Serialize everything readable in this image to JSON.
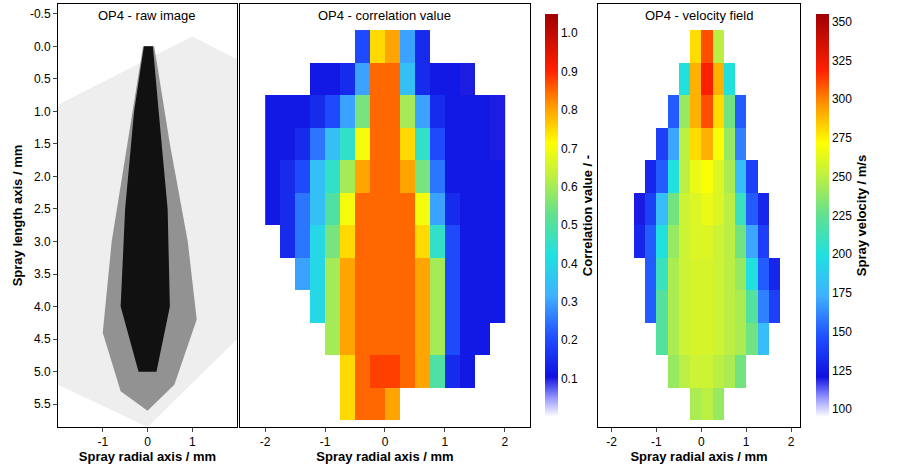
{
  "chart_data": [
    {
      "type": "image",
      "title": "OP4 - raw image",
      "xlabel": "Spray radial axis / mm",
      "ylabel": "Spray length axis / mm",
      "xlim": [
        -2,
        2
      ],
      "xticks": [
        -1,
        0,
        1
      ],
      "ylim": [
        5.85,
        -0.65
      ],
      "yticks": [
        -0.5,
        {
          "value": 0,
          "label": "0.0"
        },
        0.5,
        {
          "value": 1,
          "label": "1.0"
        },
        1.5,
        {
          "value": 2,
          "label": "2.0"
        },
        2.5,
        {
          "value": 3,
          "label": "3.0"
        },
        3.5,
        {
          "value": 4,
          "label": "4.0"
        },
        4.5,
        {
          "value": 5,
          "label": "5.0"
        },
        5.5
      ]
    },
    {
      "type": "heatmap",
      "title": "OP4 - correlation value",
      "xlabel": "Spray radial axis / mm",
      "xlim": [
        -2.42,
        2.42
      ],
      "xticks": [
        -2,
        -1,
        0,
        1,
        2
      ],
      "ylim": [
        5.85,
        -0.65
      ],
      "tick_labels": "x",
      "x": [
        -1.875,
        -1.625,
        -1.375,
        -1.125,
        -0.875,
        -0.625,
        -0.375,
        -0.125,
        0.125,
        0.375,
        0.625,
        0.875,
        1.125,
        1.375,
        1.625,
        1.875
      ],
      "y": [
        0,
        0.5,
        1,
        1.5,
        2,
        2.5,
        3,
        3.5,
        4,
        4.5,
        5,
        5.5
      ],
      "cells": [
        [
          null,
          null,
          null,
          null,
          null,
          null,
          0.2,
          0.75,
          0.8,
          0.3,
          0.15,
          null,
          null,
          null,
          null,
          null
        ],
        [
          null,
          null,
          null,
          0.12,
          0.12,
          0.15,
          0.3,
          0.85,
          0.85,
          0.35,
          0.15,
          0.12,
          0.12,
          0.1,
          null,
          null
        ],
        [
          0.12,
          0.12,
          0.12,
          0.15,
          0.2,
          0.3,
          0.55,
          0.85,
          0.85,
          0.6,
          0.3,
          0.15,
          0.12,
          0.12,
          0.12,
          0.1
        ],
        [
          0.12,
          0.12,
          0.15,
          0.25,
          0.35,
          0.45,
          0.7,
          0.85,
          0.85,
          0.75,
          0.45,
          0.2,
          0.12,
          0.12,
          0.12,
          0.1
        ],
        [
          0.12,
          0.15,
          0.2,
          0.35,
          0.45,
          0.6,
          0.8,
          0.85,
          0.85,
          0.8,
          0.55,
          0.25,
          0.12,
          0.12,
          0.12,
          0.12
        ],
        [
          0.12,
          0.15,
          0.25,
          0.35,
          0.5,
          0.7,
          0.85,
          0.85,
          0.85,
          0.85,
          0.7,
          0.3,
          0.15,
          0.12,
          0.12,
          0.12
        ],
        [
          null,
          0.15,
          0.25,
          0.4,
          0.55,
          0.75,
          0.85,
          0.85,
          0.85,
          0.85,
          0.75,
          0.45,
          0.2,
          0.12,
          0.12,
          0.12
        ],
        [
          null,
          null,
          0.3,
          0.4,
          0.6,
          0.8,
          0.85,
          0.85,
          0.85,
          0.85,
          0.8,
          0.6,
          0.2,
          0.12,
          0.12,
          0.12
        ],
        [
          null,
          null,
          null,
          0.4,
          0.6,
          0.8,
          0.85,
          0.85,
          0.85,
          0.85,
          0.8,
          0.6,
          0.2,
          0.12,
          0.12,
          0.12
        ],
        [
          null,
          null,
          null,
          null,
          0.6,
          0.8,
          0.85,
          0.85,
          0.85,
          0.85,
          0.8,
          0.6,
          0.2,
          0.12,
          0.12,
          null
        ],
        [
          null,
          null,
          null,
          null,
          null,
          0.75,
          0.85,
          0.88,
          0.88,
          0.85,
          0.8,
          0.5,
          0.15,
          0.12,
          null,
          null
        ],
        [
          null,
          null,
          null,
          null,
          null,
          0.75,
          0.85,
          0.85,
          0.8,
          null,
          null,
          null,
          null,
          null,
          null,
          null
        ]
      ],
      "colorbar_title": "Correlation value / -",
      "zlim": [
        0,
        1.05
      ],
      "zticks": [
        0.1,
        0.2,
        0.3,
        0.4,
        0.5,
        0.6,
        0.7,
        0.8,
        0.9,
        {
          "value": 1,
          "label": "1.0"
        }
      ]
    },
    {
      "type": "heatmap",
      "title": "OP4 - velocity field",
      "xlabel": "Spray radial axis / mm",
      "xlim": [
        -2.3,
        2.2
      ],
      "xticks": [
        -2,
        -1,
        0,
        1,
        2
      ],
      "ylim": [
        5.85,
        -0.65
      ],
      "tick_labels": "x",
      "x": [
        -1.875,
        -1.625,
        -1.375,
        -1.125,
        -0.875,
        -0.625,
        -0.375,
        -0.125,
        0.125,
        0.375,
        0.625,
        0.875,
        1.125,
        1.375,
        1.625,
        1.875
      ],
      "y": [
        0,
        0.5,
        1,
        1.5,
        2,
        2.5,
        3,
        3.5,
        4,
        4.5,
        5,
        5.5
      ],
      "cells": [
        [
          null,
          null,
          null,
          null,
          null,
          null,
          null,
          280,
          310,
          250,
          null,
          null,
          null,
          null,
          null,
          null
        ],
        [
          null,
          null,
          null,
          null,
          null,
          null,
          200,
          290,
          320,
          290,
          200,
          null,
          null,
          null,
          null,
          null
        ],
        [
          null,
          null,
          null,
          null,
          null,
          150,
          240,
          290,
          310,
          280,
          230,
          150,
          null,
          null,
          null,
          null
        ],
        [
          null,
          null,
          null,
          null,
          140,
          170,
          250,
          280,
          290,
          270,
          240,
          160,
          null,
          null,
          null,
          null
        ],
        [
          null,
          null,
          null,
          130,
          150,
          200,
          250,
          265,
          270,
          260,
          245,
          180,
          140,
          null,
          null,
          null
        ],
        [
          null,
          null,
          120,
          140,
          180,
          230,
          255,
          260,
          265,
          260,
          250,
          210,
          150,
          130,
          null,
          null
        ],
        [
          null,
          null,
          130,
          150,
          200,
          240,
          255,
          260,
          260,
          255,
          250,
          230,
          170,
          140,
          null,
          null
        ],
        [
          null,
          null,
          null,
          150,
          210,
          245,
          255,
          258,
          258,
          255,
          250,
          240,
          200,
          150,
          130,
          null
        ],
        [
          null,
          null,
          null,
          150,
          220,
          245,
          255,
          258,
          258,
          255,
          250,
          245,
          220,
          160,
          140,
          null
        ],
        [
          null,
          null,
          null,
          null,
          220,
          245,
          255,
          258,
          258,
          255,
          250,
          245,
          230,
          180,
          null,
          null
        ],
        [
          null,
          null,
          null,
          null,
          null,
          240,
          250,
          255,
          255,
          250,
          245,
          230,
          null,
          null,
          null,
          null
        ],
        [
          null,
          null,
          null,
          null,
          null,
          null,
          null,
          245,
          250,
          240,
          null,
          null,
          null,
          null,
          null,
          null
        ]
      ],
      "colorbar_title": "Spray velocity / m/s",
      "zlim": [
        95,
        355
      ],
      "zticks": [
        100,
        125,
        150,
        175,
        200,
        225,
        250,
        275,
        300,
        325,
        350
      ]
    }
  ]
}
